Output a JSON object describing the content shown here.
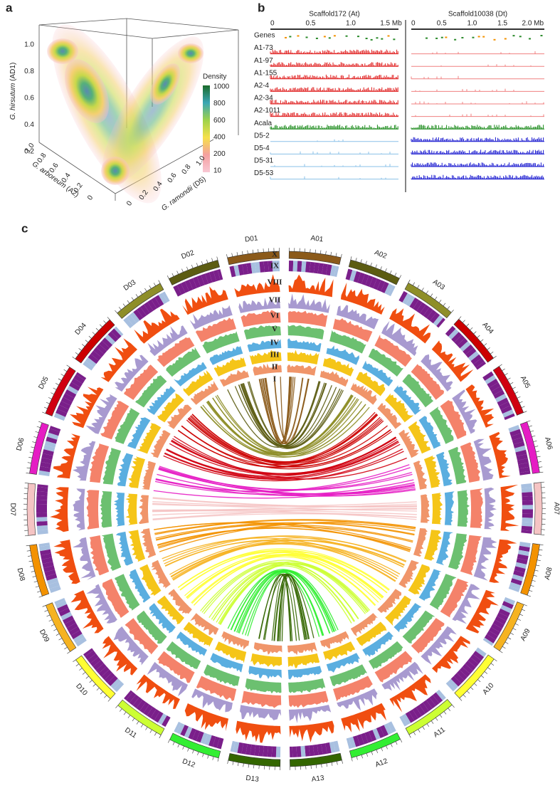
{
  "panel_a": {
    "label": "a",
    "y_axis": {
      "species": "G. hirsutum",
      "genome": "(AD1)",
      "ticks": [
        "0.2",
        "0.4",
        "0.6",
        "0.8",
        "1.0"
      ]
    },
    "x_axis": {
      "species": "G. arboreum",
      "genome": "(A2)",
      "ticks": [
        "1.0",
        "0.8",
        "0.6",
        "0.4",
        "0.2",
        "0"
      ]
    },
    "z_axis": {
      "species": "G. ramondii",
      "genome": "(D5)",
      "ticks": [
        "0",
        "0.2",
        "0.4",
        "0.6",
        "0.8",
        "1.0"
      ]
    },
    "legend": {
      "title": "Density",
      "ticks": [
        "1000",
        "800",
        "600",
        "400",
        "200",
        "10"
      ]
    }
  },
  "panel_b": {
    "label": "b",
    "scaffolds": [
      {
        "title": "Scaffold172 (At)",
        "ticks": [
          "0",
          "0.5",
          "1.0",
          "1.5 Mb"
        ]
      },
      {
        "title": "Scaffold10038 (Dt)",
        "ticks": [
          "0",
          "0.5",
          "1.0",
          "1.5",
          "2.0 Mb"
        ]
      }
    ],
    "tracks": [
      "Genes",
      "A1-73",
      "A1-97",
      "A1-155",
      "A2-4",
      "A2-34",
      "A2-1011",
      "Acala",
      "D5-2",
      "D5-4",
      "D5-31",
      "D5-53"
    ]
  },
  "panel_c": {
    "label": "c",
    "ring_labels": [
      "X",
      "IX",
      "VIII",
      "VII",
      "VI",
      "V",
      "IV",
      "III",
      "II",
      "I"
    ],
    "a_genome": [
      {
        "name": "A01",
        "color": "#8b5a1a"
      },
      {
        "name": "A02",
        "color": "#5c5c12"
      },
      {
        "name": "A03",
        "color": "#8e8e28"
      },
      {
        "name": "A04",
        "color": "#cc0000"
      },
      {
        "name": "A05",
        "color": "#d00010"
      },
      {
        "name": "A06",
        "color": "#e51cc4"
      },
      {
        "name": "A07",
        "color": "#f5c4c4"
      },
      {
        "name": "A08",
        "color": "#f39200"
      },
      {
        "name": "A09",
        "color": "#f6b321"
      },
      {
        "name": "A10",
        "color": "#ffff33"
      },
      {
        "name": "A11",
        "color": "#ccff33"
      },
      {
        "name": "A12",
        "color": "#33ee33"
      },
      {
        "name": "A13",
        "color": "#336600"
      }
    ],
    "d_genome": [
      {
        "name": "D01",
        "color": "#8b5a1a"
      },
      {
        "name": "D02",
        "color": "#5c5c12"
      },
      {
        "name": "D03",
        "color": "#8e8e28"
      },
      {
        "name": "D04",
        "color": "#cc0000"
      },
      {
        "name": "D05",
        "color": "#d00010"
      },
      {
        "name": "D06",
        "color": "#e51cc4"
      },
      {
        "name": "D07",
        "color": "#f5c4c4"
      },
      {
        "name": "D08",
        "color": "#f39200"
      },
      {
        "name": "D09",
        "color": "#f6b321"
      },
      {
        "name": "D10",
        "color": "#ffff33"
      },
      {
        "name": "D11",
        "color": "#ccff33"
      },
      {
        "name": "D12",
        "color": "#33ee33"
      },
      {
        "name": "D13",
        "color": "#336600"
      }
    ]
  }
}
